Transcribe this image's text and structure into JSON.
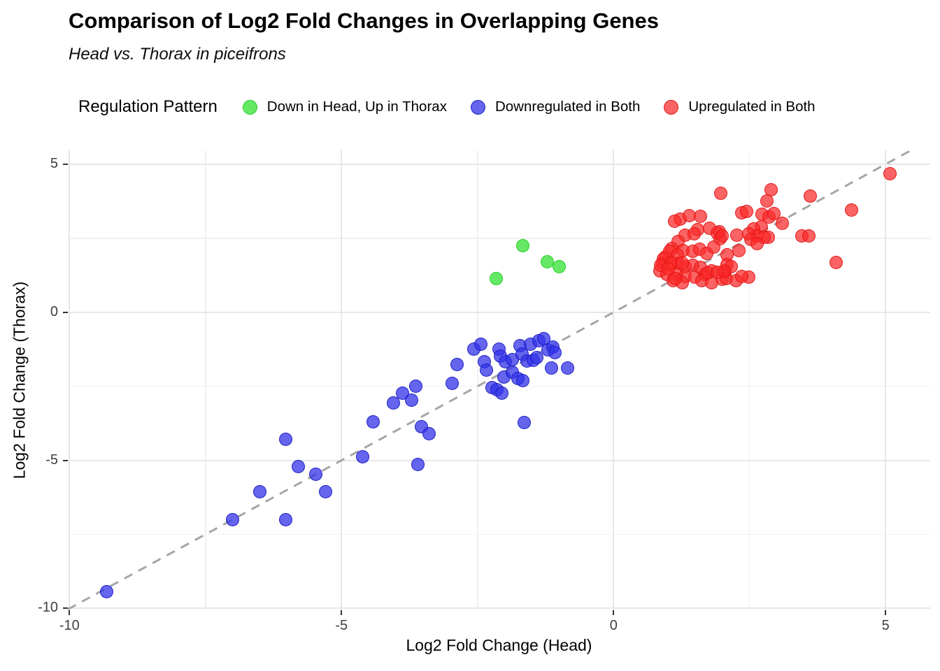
{
  "header": {
    "title": "Comparison of Log2 Fold Changes in Overlapping Genes",
    "subtitle": "Head vs. Thorax in piceifrons"
  },
  "legend": {
    "title": "Regulation Pattern",
    "items": [
      {
        "key": "down-head-up-thorax",
        "label": "Down in Head, Up in Thorax"
      },
      {
        "key": "downregulated-both",
        "label": "Downregulated in Both"
      },
      {
        "key": "upregulated-both",
        "label": "Upregulated in Both"
      }
    ]
  },
  "colors": {
    "grid_major": "#e7e7e7",
    "grid_minor": "#f1f1f1",
    "identity_line": "#a6a6a6",
    "tick_text": "#404040",
    "green": "#3ee43e",
    "blue": "#3232e8",
    "red": "#fa2828"
  },
  "chart_data": {
    "type": "scatter",
    "title": "Comparison of Log2 Fold Changes in Overlapping Genes",
    "subtitle": "Head vs. Thorax in piceifrons",
    "xlabel": "Log2 Fold Change (Head)",
    "ylabel": "Log2 Fold Change (Thorax)",
    "xlim": [
      -10.03,
      5.82
    ],
    "ylim": [
      -10.06,
      5.47
    ],
    "x_ticks": [
      {
        "value": -10,
        "label": "-10"
      },
      {
        "value": -5,
        "label": "-5"
      },
      {
        "value": 0,
        "label": "0"
      },
      {
        "value": 5,
        "label": "5"
      }
    ],
    "y_ticks": [
      {
        "value": 5,
        "label": "5"
      },
      {
        "value": 0,
        "label": "0"
      },
      {
        "value": -5,
        "label": "-5"
      },
      {
        "value": -10,
        "label": "-10"
      }
    ],
    "x_minor": [
      -7.5,
      -2.5,
      2.5
    ],
    "y_minor": [
      -7.5,
      -2.5,
      2.5
    ],
    "grid": true,
    "legend_position": "top",
    "identity_line": {
      "show": true,
      "style": "dashed",
      "equation": "y = x"
    },
    "series": [
      {
        "key": "down-head-up-thorax",
        "name": "Down in Head, Up in Thorax",
        "fill": "rgba(62,228,62,0.8)",
        "stroke": "rgba(40,202,40,0.95)",
        "points": [
          [
            -2.16,
            1.15
          ],
          [
            -1.67,
            2.25
          ],
          [
            -1.22,
            1.7
          ],
          [
            -1.0,
            1.53
          ]
        ]
      },
      {
        "key": "downregulated-both",
        "name": "Downregulated in Both",
        "fill": "rgba(50,50,232,0.75)",
        "stroke": "rgba(30,30,196,0.95)",
        "points": [
          [
            -9.32,
            -9.43
          ],
          [
            -7.0,
            -7.0
          ],
          [
            -6.5,
            -6.05
          ],
          [
            -6.02,
            -7.0
          ],
          [
            -6.03,
            -4.28
          ],
          [
            -5.79,
            -5.22
          ],
          [
            -5.47,
            -5.46
          ],
          [
            -5.29,
            -6.05
          ],
          [
            -4.61,
            -4.89
          ],
          [
            -4.42,
            -3.7
          ],
          [
            -3.6,
            -5.15
          ],
          [
            -3.53,
            -3.86
          ],
          [
            -3.39,
            -4.1
          ],
          [
            -4.04,
            -3.06
          ],
          [
            -3.88,
            -2.74
          ],
          [
            -3.71,
            -2.97
          ],
          [
            -3.64,
            -2.5
          ],
          [
            -2.97,
            -2.41
          ],
          [
            -2.88,
            -1.77
          ],
          [
            -2.57,
            -1.25
          ],
          [
            -2.44,
            -1.09
          ],
          [
            -2.38,
            -1.68
          ],
          [
            -2.34,
            -1.95
          ],
          [
            -2.23,
            -2.54
          ],
          [
            -2.14,
            -2.62
          ],
          [
            -2.05,
            -2.73
          ],
          [
            -2.1,
            -1.25
          ],
          [
            -2.08,
            -1.49
          ],
          [
            -2.02,
            -2.19
          ],
          [
            -1.99,
            -1.68
          ],
          [
            -1.86,
            -1.6
          ],
          [
            -1.86,
            -2.03
          ],
          [
            -1.76,
            -2.23
          ],
          [
            -1.67,
            -2.31
          ],
          [
            -1.72,
            -1.13
          ],
          [
            -1.68,
            -1.41
          ],
          [
            -1.59,
            -1.64
          ],
          [
            -1.53,
            -1.09
          ],
          [
            -1.48,
            -1.62
          ],
          [
            -1.41,
            -1.52
          ],
          [
            -1.37,
            -0.97
          ],
          [
            -1.28,
            -0.89
          ],
          [
            -1.21,
            -1.28
          ],
          [
            -1.12,
            -1.17
          ],
          [
            -1.08,
            -1.36
          ],
          [
            -1.14,
            -1.88
          ],
          [
            -0.85,
            -1.88
          ],
          [
            -1.64,
            -3.72
          ]
        ]
      },
      {
        "key": "upregulated-both",
        "name": "Upregulated in Both",
        "fill": "rgba(250,40,40,0.72)",
        "stroke": "rgba(228,20,20,0.95)",
        "points": [
          [
            5.08,
            4.69
          ],
          [
            2.9,
            4.13
          ],
          [
            1.97,
            4.03
          ],
          [
            3.62,
            3.92
          ],
          [
            2.82,
            3.77
          ],
          [
            4.37,
            3.45
          ],
          [
            2.73,
            3.3
          ],
          [
            2.86,
            3.22
          ],
          [
            1.22,
            3.15
          ],
          [
            1.39,
            3.27
          ],
          [
            1.6,
            3.24
          ],
          [
            1.12,
            3.08
          ],
          [
            2.35,
            3.36
          ],
          [
            2.45,
            3.41
          ],
          [
            2.95,
            3.34
          ],
          [
            3.1,
            3.0
          ],
          [
            2.72,
            2.89
          ],
          [
            2.58,
            2.82
          ],
          [
            2.84,
            2.52
          ],
          [
            1.94,
            2.73
          ],
          [
            1.96,
            2.49
          ],
          [
            3.46,
            2.59
          ],
          [
            3.59,
            2.59
          ],
          [
            2.64,
            2.58
          ],
          [
            4.09,
            1.68
          ],
          [
            2.26,
            2.61
          ],
          [
            1.54,
            2.8
          ],
          [
            1.77,
            2.85
          ],
          [
            1.31,
            2.61
          ],
          [
            1.48,
            2.66
          ],
          [
            1.9,
            2.68
          ],
          [
            2.0,
            2.59
          ],
          [
            2.48,
            2.66
          ],
          [
            2.52,
            2.45
          ],
          [
            2.77,
            2.52
          ],
          [
            1.18,
            2.38
          ],
          [
            1.07,
            2.16
          ],
          [
            1.28,
            2.09
          ],
          [
            1.45,
            2.05
          ],
          [
            1.58,
            2.12
          ],
          [
            1.71,
            2.0
          ],
          [
            1.84,
            2.21
          ],
          [
            2.31,
            2.09
          ],
          [
            2.09,
            1.93
          ],
          [
            0.96,
            1.86
          ],
          [
            0.9,
            1.65
          ],
          [
            1.04,
            1.58
          ],
          [
            1.19,
            1.65
          ],
          [
            1.32,
            1.53
          ],
          [
            1.45,
            1.58
          ],
          [
            0.85,
            1.41
          ],
          [
            0.98,
            1.29
          ],
          [
            1.16,
            1.27
          ],
          [
            1.32,
            1.22
          ],
          [
            1.49,
            1.18
          ],
          [
            1.67,
            1.29
          ],
          [
            1.8,
            1.39
          ],
          [
            1.6,
            1.51
          ],
          [
            2.09,
            1.62
          ],
          [
            2.05,
            1.34
          ],
          [
            2.48,
            1.18
          ],
          [
            2.0,
            1.11
          ],
          [
            1.09,
            1.06
          ],
          [
            1.26,
            0.99
          ],
          [
            1.03,
            2.05
          ],
          [
            1.17,
            1.93
          ],
          [
            0.91,
            1.81
          ],
          [
            1.06,
            1.69
          ],
          [
            1.26,
            1.65
          ],
          [
            0.87,
            1.58
          ],
          [
            1.0,
            1.46
          ],
          [
            1.13,
            1.15
          ],
          [
            1.62,
            1.06
          ],
          [
            1.8,
            0.99
          ],
          [
            2.07,
            1.15
          ],
          [
            2.25,
            1.06
          ],
          [
            2.35,
            1.22
          ],
          [
            1.73,
            1.33
          ],
          [
            2.16,
            1.53
          ],
          [
            2.03,
            1.41
          ],
          [
            1.9,
            1.34
          ],
          [
            2.64,
            2.33
          ]
        ]
      }
    ]
  }
}
